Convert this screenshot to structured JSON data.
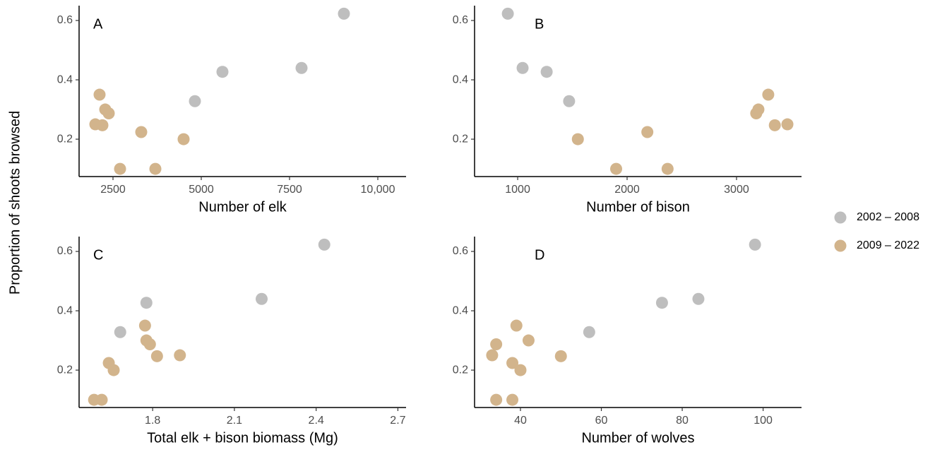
{
  "y_label": "Proportion of shoots browsed",
  "chart_data": [
    {
      "type": "scatter",
      "label": "A",
      "x_label": "Number of elk",
      "xlim": [
        1540,
        10800
      ],
      "xticks": [
        2500,
        5000,
        7500,
        {
          "value": 10000,
          "label": "10,000"
        }
      ],
      "ylim": [
        0.074,
        0.65
      ],
      "yticks": [
        0.2,
        0.4,
        0.6
      ],
      "series": [
        {
          "name": "2002 – 2008",
          "color": "#bebebe",
          "x": [
            9040,
            7840,
            5600,
            4820
          ],
          "values": [
            0.623,
            0.44,
            0.427,
            0.328
          ]
        },
        {
          "name": "2009 – 2022",
          "color": "#d2b48c",
          "x": [
            2120,
            2280,
            2380,
            2000,
            2200,
            3300,
            4500,
            2700,
            3700
          ],
          "values": [
            0.35,
            0.3,
            0.287,
            0.25,
            0.247,
            0.224,
            0.2,
            0.1,
            0.1
          ]
        }
      ]
    },
    {
      "type": "scatter",
      "label": "B",
      "x_label": "Number of bison",
      "xlim": [
        606,
        3594
      ],
      "xticks": [
        1000,
        2000,
        3000
      ],
      "ylim": [
        0.074,
        0.65
      ],
      "yticks": [
        0.2,
        0.4,
        0.6
      ],
      "series": [
        {
          "name": "2002 – 2008",
          "color": "#bebebe",
          "x": [
            910,
            1045,
            1265,
            1470
          ],
          "values": [
            0.623,
            0.44,
            0.427,
            0.328
          ]
        },
        {
          "name": "2009 – 2022",
          "color": "#d2b48c",
          "x": [
            3290,
            3200,
            3180,
            3465,
            3350,
            2185,
            1550,
            1900,
            2370
          ],
          "values": [
            0.35,
            0.3,
            0.287,
            0.25,
            0.247,
            0.224,
            0.2,
            0.1,
            0.1
          ]
        }
      ]
    },
    {
      "type": "scatter",
      "label": "C",
      "x_label": "Total elk + bison biomass (Mg)",
      "xlim": [
        1.53,
        2.73
      ],
      "xticks": [
        1.8,
        2.1,
        2.4,
        2.7
      ],
      "ylim": [
        0.074,
        0.65
      ],
      "yticks": [
        0.2,
        0.4,
        0.6
      ],
      "series": [
        {
          "name": "2002 – 2008",
          "color": "#bebebe",
          "x": [
            2.43,
            2.2,
            1.777,
            1.681
          ],
          "values": [
            0.623,
            0.44,
            0.427,
            0.328
          ]
        },
        {
          "name": "2009 – 2022",
          "color": "#d2b48c",
          "x": [
            1.772,
            1.777,
            1.79,
            1.9,
            1.816,
            1.639,
            1.657,
            1.585,
            1.613
          ],
          "values": [
            0.35,
            0.3,
            0.287,
            0.25,
            0.247,
            0.224,
            0.2,
            0.1,
            0.1
          ]
        }
      ]
    },
    {
      "type": "scatter",
      "label": "D",
      "x_label": "Number of wolves",
      "xlim": [
        28.65,
        109.5
      ],
      "xticks": [
        40,
        60,
        80,
        100
      ],
      "ylim": [
        0.074,
        0.65
      ],
      "yticks": [
        0.2,
        0.4,
        0.6
      ],
      "series": [
        {
          "name": "2002 – 2008",
          "color": "#bebebe",
          "x": [
            98,
            84,
            75,
            57
          ],
          "values": [
            0.623,
            0.44,
            0.427,
            0.328
          ]
        },
        {
          "name": "2009 – 2022",
          "color": "#d2b48c",
          "x": [
            39,
            42,
            34,
            33,
            50,
            38,
            40,
            34,
            38
          ],
          "values": [
            0.35,
            0.3,
            0.287,
            0.25,
            0.247,
            0.224,
            0.2,
            0.1,
            0.1
          ]
        }
      ]
    }
  ]
}
